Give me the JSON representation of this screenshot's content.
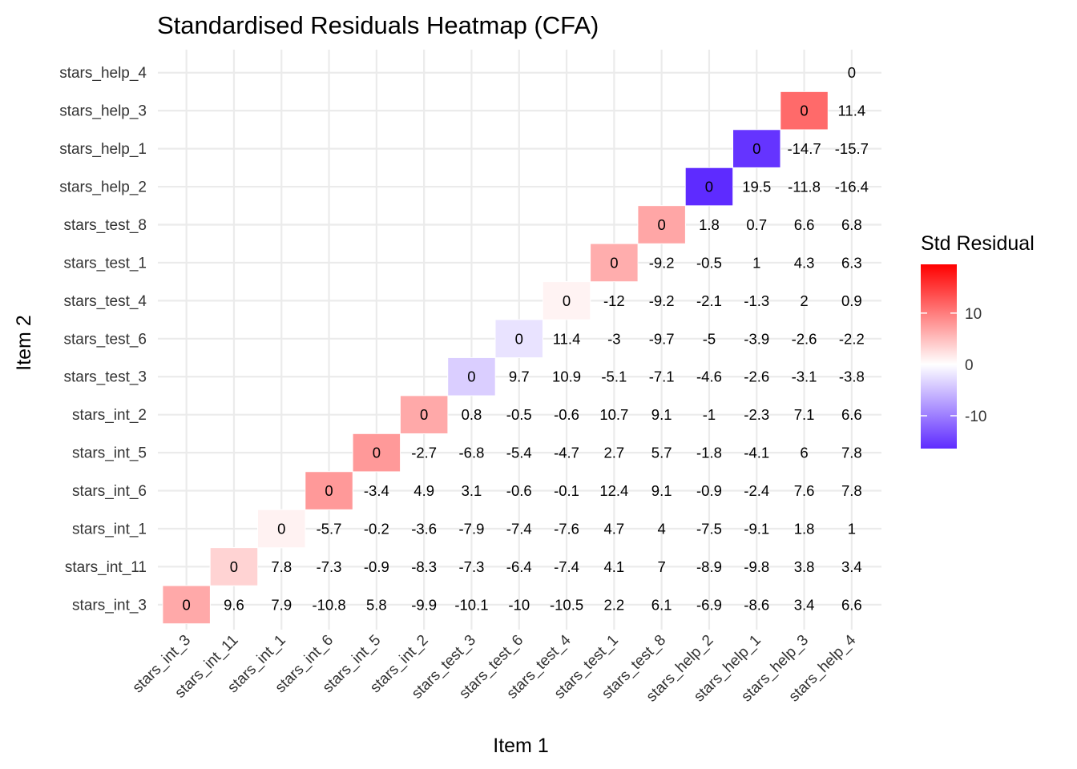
{
  "chart_data": {
    "type": "heatmap",
    "title": "Standardised Residuals Heatmap (CFA)",
    "xlabel": "Item 1",
    "ylabel": "Item 2",
    "items": [
      "stars_int_3",
      "stars_int_11",
      "stars_int_1",
      "stars_int_6",
      "stars_int_5",
      "stars_int_2",
      "stars_test_3",
      "stars_test_6",
      "stars_test_4",
      "stars_test_1",
      "stars_test_8",
      "stars_help_2",
      "stars_help_1",
      "stars_help_3",
      "stars_help_4"
    ],
    "values": [
      [
        "0"
      ],
      [
        "9.6",
        "0"
      ],
      [
        "7.9",
        "7.8",
        "0"
      ],
      [
        "-10.8",
        "-7.3",
        "-5.7",
        "0"
      ],
      [
        "5.8",
        "-0.9",
        "-0.2",
        "-3.4",
        "0"
      ],
      [
        "-9.9",
        "-8.3",
        "-3.6",
        "4.9",
        "-2.7",
        "0"
      ],
      [
        "-10.1",
        "-7.3",
        "-7.9",
        "3.1",
        "-6.8",
        "0.8",
        "0"
      ],
      [
        "-10",
        "-6.4",
        "-7.4",
        "-0.6",
        "-5.4",
        "-0.5",
        "9.7",
        "0"
      ],
      [
        "-10.5",
        "-7.4",
        "-7.6",
        "-0.1",
        "-4.7",
        "-0.6",
        "10.9",
        "11.4",
        "0"
      ],
      [
        "2.2",
        "4.1",
        "4.7",
        "12.4",
        "2.7",
        "10.7",
        "-5.1",
        "-3",
        "-12",
        "0"
      ],
      [
        "6.1",
        "7",
        "4",
        "9.1",
        "5.7",
        "9.1",
        "-7.1",
        "-9.7",
        "-9.2",
        "-9.2",
        "0"
      ],
      [
        "-6.9",
        "-8.9",
        "-7.5",
        "-0.9",
        "-1.8",
        "-1",
        "-4.6",
        "-5",
        "-2.1",
        "-0.5",
        "1.8",
        "0"
      ],
      [
        "-8.6",
        "-9.8",
        "-9.1",
        "-2.4",
        "-4.1",
        "-2.3",
        "-2.6",
        "-3.9",
        "-1.3",
        "1",
        "0.7",
        "19.5",
        "0"
      ],
      [
        "3.4",
        "3.8",
        "1.8",
        "7.6",
        "6",
        "7.1",
        "-3.1",
        "-2.6",
        "2",
        "4.3",
        "6.6",
        "-11.8",
        "-14.7",
        "0"
      ],
      [
        "6.6",
        "3.4",
        "1",
        "7.8",
        "7.8",
        "6.6",
        "-3.8",
        "-2.2",
        "0.9",
        "6.3",
        "6.8",
        "-16.4",
        "-15.7",
        "11.4",
        "0"
      ]
    ],
    "color_scale": {
      "low": "#5e2bff",
      "mid": "#ffffff",
      "high": "#ff0000",
      "min": -16.4,
      "max": 19.5
    },
    "legend": {
      "title": "Std Residual",
      "ticks": [
        "10",
        "0",
        "-10"
      ],
      "placement": "right"
    }
  }
}
